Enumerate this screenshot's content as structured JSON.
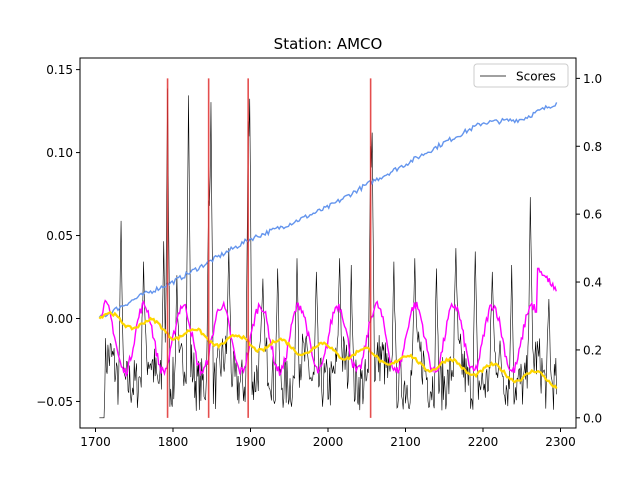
{
  "chart_data": {
    "type": "line",
    "title": "Station: AMCO",
    "xlabel": "",
    "ylabel": "",
    "xlim": [
      1680,
      2320
    ],
    "ylim_left": [
      -0.066,
      0.157
    ],
    "ylim_right": [
      -0.03,
      1.06
    ],
    "x_ticks": [
      "1700",
      "1800",
      "1900",
      "2000",
      "2100",
      "2200",
      "2300"
    ],
    "y_ticks_left": [
      "−0.05",
      "0.00",
      "0.05",
      "0.10",
      "0.15"
    ],
    "y_ticks_right": [
      "0.0",
      "0.2",
      "0.4",
      "0.6",
      "0.8",
      "1.0"
    ],
    "grid": false,
    "legend": {
      "position": "top-right",
      "entries": [
        "Scores"
      ]
    },
    "anomaly_markers": [
      1793,
      1846,
      1897,
      2055
    ],
    "series": [
      {
        "name": "Scores",
        "axis": "right",
        "color": "#000000",
        "x_start": 1705,
        "x_end": 2295,
        "baseline": 0.0,
        "peaks": [
          [
            1733,
            0.58
          ],
          [
            1762,
            0.46
          ],
          [
            1788,
            0.52
          ],
          [
            1793,
            0.97
          ],
          [
            1805,
            0.42
          ],
          [
            1820,
            0.95
          ],
          [
            1846,
            0.64
          ],
          [
            1849,
            0.93
          ],
          [
            1872,
            0.5
          ],
          [
            1897,
            0.84
          ],
          [
            1899,
            0.94
          ],
          [
            1916,
            0.41
          ],
          [
            1935,
            0.44
          ],
          [
            1960,
            0.47
          ],
          [
            1985,
            0.43
          ],
          [
            2015,
            0.47
          ],
          [
            2030,
            0.45
          ],
          [
            2055,
            0.78
          ],
          [
            2057,
            0.84
          ],
          [
            2085,
            0.46
          ],
          [
            2112,
            0.47
          ],
          [
            2140,
            0.44
          ],
          [
            2165,
            0.5
          ],
          [
            2190,
            0.49
          ],
          [
            2212,
            0.43
          ],
          [
            2237,
            0.45
          ],
          [
            2261,
            0.65
          ],
          [
            2285,
            0.35
          ]
        ]
      },
      {
        "name": "",
        "axis": "left",
        "color": "#6495ed",
        "points": [
          [
            1705,
            0.0
          ],
          [
            1720,
            0.004
          ],
          [
            1760,
            0.014
          ],
          [
            1800,
            0.022
          ],
          [
            1846,
            0.034
          ],
          [
            1900,
            0.048
          ],
          [
            1950,
            0.057
          ],
          [
            2000,
            0.067
          ],
          [
            2055,
            0.082
          ],
          [
            2100,
            0.093
          ],
          [
            2150,
            0.106
          ],
          [
            2200,
            0.118
          ],
          [
            2250,
            0.12
          ],
          [
            2295,
            0.13
          ]
        ]
      },
      {
        "name": "",
        "axis": "left",
        "color": "#ff00ff",
        "center": -0.012,
        "amplitude": 0.02,
        "period": 50,
        "points_end": [
          [
            2280,
            0.025
          ],
          [
            2295,
            0.018
          ]
        ]
      },
      {
        "name": "",
        "axis": "left",
        "color": "#ffd700",
        "points": [
          [
            1705,
            0.0
          ],
          [
            1750,
            -0.002
          ],
          [
            1800,
            -0.008
          ],
          [
            1850,
            -0.012
          ],
          [
            1900,
            -0.015
          ],
          [
            1950,
            -0.017
          ],
          [
            2000,
            -0.019
          ],
          [
            2050,
            -0.022
          ],
          [
            2100,
            -0.026
          ],
          [
            2150,
            -0.028
          ],
          [
            2200,
            -0.031
          ],
          [
            2250,
            -0.034
          ],
          [
            2295,
            -0.038
          ]
        ]
      }
    ]
  }
}
